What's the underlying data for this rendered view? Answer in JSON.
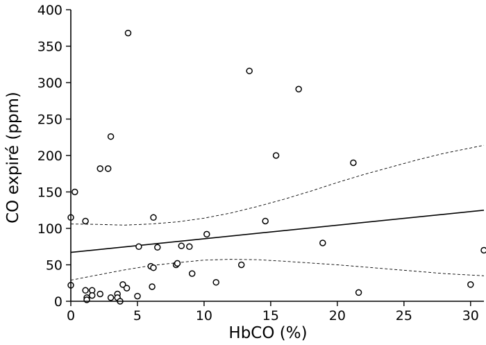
{
  "chart_data": {
    "type": "scatter",
    "title": "",
    "xlabel": "HbCO (%)",
    "ylabel": "CO expiré (ppm)",
    "xlim": [
      0,
      31
    ],
    "ylim": [
      0,
      400
    ],
    "x_ticks": [
      0,
      5,
      10,
      15,
      20,
      25,
      30
    ],
    "y_ticks": [
      0,
      50,
      100,
      150,
      200,
      250,
      300,
      350,
      400
    ],
    "x_tick_labels": [
      "0",
      "5",
      "10",
      "15",
      "20",
      "25",
      "30"
    ],
    "y_tick_labels": [
      "0",
      "50",
      "100",
      "150",
      "200",
      "250",
      "300",
      "350",
      "400"
    ],
    "grid": false,
    "legend": "none",
    "series": [
      {
        "kind": "points",
        "x": [
          0.3,
          0.0,
          1.1,
          0.0,
          1.1,
          1.2,
          1.2,
          1.6,
          1.6,
          2.2,
          2.2,
          2.8,
          3.0,
          3.0,
          3.5,
          3.5,
          3.7,
          3.9,
          4.2,
          4.3,
          5.0,
          5.1,
          6.0,
          6.1,
          6.2,
          6.2,
          6.5,
          7.9,
          8.0,
          8.3,
          8.9,
          9.1,
          10.2,
          10.9,
          12.8,
          13.4,
          14.6,
          15.4,
          17.1,
          18.9,
          21.2,
          21.6,
          30.0,
          31.0
        ],
        "y": [
          150,
          115,
          110,
          22,
          15,
          5,
          2,
          15,
          8,
          10,
          182,
          182,
          226,
          5,
          10,
          5,
          0,
          23,
          18,
          368,
          7,
          75,
          48,
          20,
          46,
          115,
          74,
          50,
          52,
          76,
          75,
          38,
          92,
          26,
          50,
          316,
          110,
          200,
          291,
          80,
          190,
          12,
          23,
          70
        ]
      },
      {
        "kind": "regression",
        "x": [
          0,
          31
        ],
        "y": [
          67,
          125
        ]
      },
      {
        "kind": "ci_upper",
        "x": [
          0,
          2,
          4,
          6,
          8,
          10,
          12,
          14,
          16,
          18,
          20,
          22,
          24,
          26,
          28,
          31
        ],
        "y": [
          106,
          105.5,
          104.5,
          106,
          109,
          114,
          121,
          130,
          140,
          151,
          163,
          174,
          184,
          194,
          203,
          214
        ]
      },
      {
        "kind": "ci_lower",
        "x": [
          0,
          2,
          4,
          6,
          8,
          10,
          12,
          14,
          16,
          18,
          20,
          22,
          24,
          26,
          28,
          31
        ],
        "y": [
          29,
          36,
          43,
          49,
          53,
          56.5,
          57.5,
          57,
          55,
          52.5,
          50,
          47,
          44,
          41,
          38,
          35
        ]
      }
    ]
  }
}
